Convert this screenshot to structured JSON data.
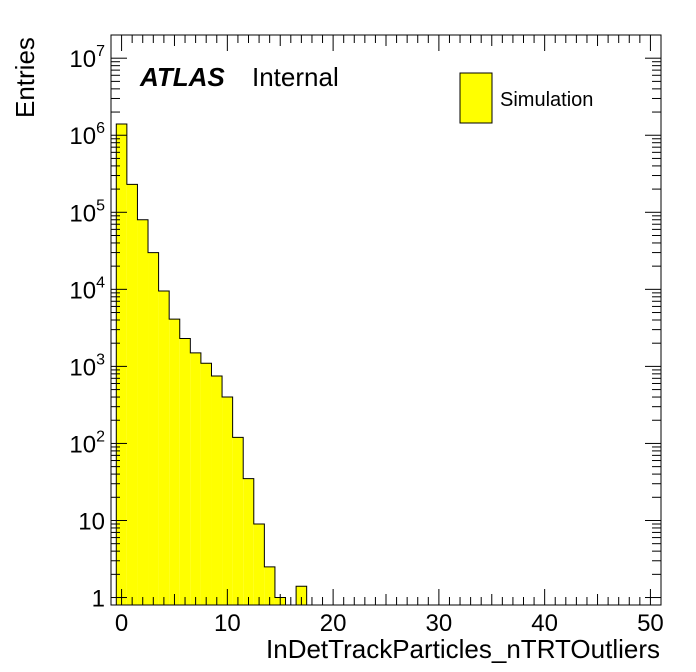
{
  "chart_data": {
    "type": "bar",
    "histogram": true,
    "xlabel": "InDetTrackParticles_nTRTOutliers",
    "ylabel": "Entries",
    "xlim": [
      -1,
      51
    ],
    "ylim": [
      0.8,
      20000000
    ],
    "yscale": "log",
    "grid": false,
    "fill_color": "#ffff00",
    "edge_color": "#000000",
    "labels": {
      "experiment": "ATLAS",
      "status": "Internal"
    },
    "legend": {
      "position": "top-right",
      "entries": [
        "Simulation"
      ]
    },
    "x_ticks": [
      0,
      10,
      20,
      30,
      40,
      50
    ],
    "x_tick_labels": [
      "0",
      "10",
      "20",
      "30",
      "40",
      "50"
    ],
    "y_ticks": [
      1,
      10,
      100,
      1000,
      10000,
      100000,
      1000000,
      10000000
    ],
    "y_tick_labels": [
      {
        "base": "1",
        "exp": ""
      },
      {
        "base": "10",
        "exp": ""
      },
      {
        "base": "10",
        "exp": "2"
      },
      {
        "base": "10",
        "exp": "3"
      },
      {
        "base": "10",
        "exp": "4"
      },
      {
        "base": "10",
        "exp": "5"
      },
      {
        "base": "10",
        "exp": "6"
      },
      {
        "base": "10",
        "exp": "7"
      }
    ],
    "bins": [
      {
        "low": -0.5,
        "high": 0.5,
        "value": 1400000
      },
      {
        "low": 0.5,
        "high": 1.5,
        "value": 230000
      },
      {
        "low": 1.5,
        "high": 2.5,
        "value": 80000
      },
      {
        "low": 2.5,
        "high": 3.5,
        "value": 30000
      },
      {
        "low": 3.5,
        "high": 4.5,
        "value": 9500
      },
      {
        "low": 4.5,
        "high": 5.5,
        "value": 4100
      },
      {
        "low": 5.5,
        "high": 6.5,
        "value": 2300
      },
      {
        "low": 6.5,
        "high": 7.5,
        "value": 1500
      },
      {
        "low": 7.5,
        "high": 8.5,
        "value": 1100
      },
      {
        "low": 8.5,
        "high": 9.5,
        "value": 750
      },
      {
        "low": 9.5,
        "high": 10.5,
        "value": 400
      },
      {
        "low": 10.5,
        "high": 11.5,
        "value": 120
      },
      {
        "low": 11.5,
        "high": 12.5,
        "value": 35
      },
      {
        "low": 12.5,
        "high": 13.5,
        "value": 9
      },
      {
        "low": 13.5,
        "high": 14.5,
        "value": 2.5
      },
      {
        "low": 14.5,
        "high": 15.5,
        "value": 1
      },
      {
        "low": 15.5,
        "high": 16.5,
        "value": 0
      },
      {
        "low": 16.5,
        "high": 17.5,
        "value": 1.4
      }
    ]
  }
}
